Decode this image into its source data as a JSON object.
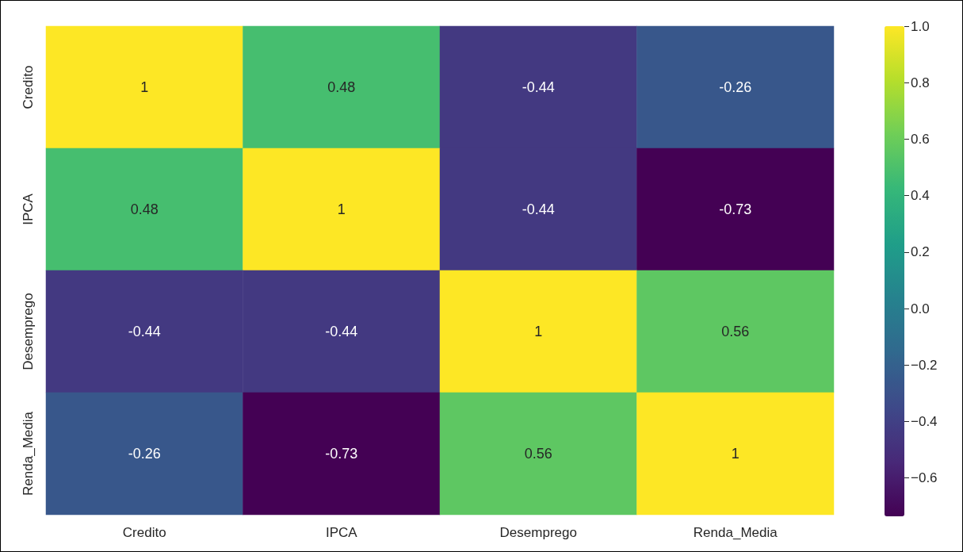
{
  "chart_data": {
    "type": "heatmap",
    "categories": [
      "Credito",
      "IPCA",
      "Desemprego",
      "Renda_Media"
    ],
    "y_categories": [
      "Credito",
      "IPCA",
      "Desemprego",
      "Renda_Media"
    ],
    "cells": [
      [
        1,
        0.48,
        -0.44,
        -0.26
      ],
      [
        0.48,
        1,
        -0.44,
        -0.73
      ],
      [
        -0.44,
        -0.44,
        1,
        0.56
      ],
      [
        -0.26,
        -0.73,
        0.56,
        1
      ]
    ],
    "data_labels": true,
    "clim": [
      -0.73,
      1
    ],
    "cticks": [
      {
        "value": -0.6,
        "label": "−0.6"
      },
      {
        "value": -0.4,
        "label": "−0.4"
      },
      {
        "value": -0.2,
        "label": "−0.2"
      },
      {
        "value": 0,
        "label": "0.0"
      },
      0.2,
      0.4,
      0.6,
      0.8,
      {
        "value": 1,
        "label": "1.0"
      }
    ]
  }
}
